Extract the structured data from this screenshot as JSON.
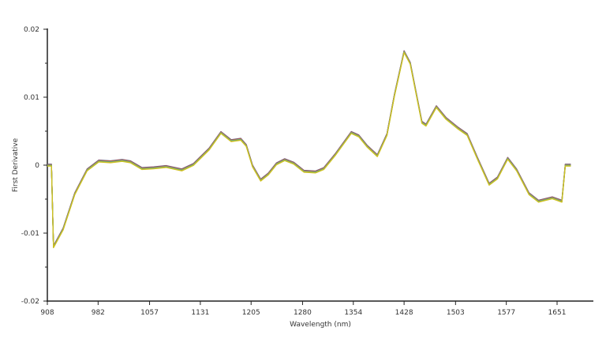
{
  "chart_data": {
    "type": "line",
    "title": "",
    "xlabel": "Wavelength (nm)",
    "ylabel": "First Derivative",
    "xlim": [
      908,
      1745
    ],
    "ylim": [
      -0.02,
      0.02
    ],
    "x_ticks": [
      908,
      982,
      1057,
      1131,
      1205,
      1280,
      1354,
      1428,
      1503,
      1577,
      1651
    ],
    "y_ticks": [
      -0.02,
      -0.01,
      0,
      0.01,
      0.02
    ],
    "y_tick_labels": [
      "-0.02",
      "-0.01",
      "0",
      "0.01",
      "0.02"
    ],
    "grid": false,
    "legend": "none",
    "series_colors": [
      "#7a5c8a",
      "#5a6a7a",
      "#d04040",
      "#e08030",
      "#40a0c0",
      "#50d080",
      "#a0a040",
      "#d0c020"
    ],
    "series": [
      {
        "x": [
          908,
          914,
          917,
          931,
          948,
          966,
          983,
          1000,
          1017,
          1029,
          1046,
          1063,
          1081,
          1104,
          1121,
          1144,
          1161,
          1176,
          1190,
          1198,
          1207,
          1219,
          1230,
          1242,
          1254,
          1267,
          1282,
          1299,
          1311,
          1328,
          1351,
          1362,
          1374,
          1389,
          1403,
          1414,
          1428,
          1437,
          1454,
          1460,
          1475,
          1489,
          1506,
          1520,
          1535,
          1552,
          1564,
          1579,
          1592,
          1610,
          1624,
          1644,
          1658,
          1663,
          1671
        ],
        "y": [
          0,
          0,
          -0.012,
          -0.0094,
          -0.0042,
          -0.0007,
          0.0006,
          0.0005,
          0.0007,
          0.0005,
          -0.0005,
          -0.0004,
          -0.0002,
          -0.0007,
          0.0001,
          0.0024,
          0.0048,
          0.0036,
          0.0038,
          0.0029,
          -0.0001,
          -0.0022,
          -0.0013,
          0.0002,
          0.0008,
          0.0003,
          -0.0009,
          -0.001,
          -0.0005,
          0.0016,
          0.0048,
          0.0043,
          0.0028,
          0.0014,
          0.0045,
          0.0103,
          0.0167,
          0.015,
          0.0063,
          0.0059,
          0.0086,
          0.0069,
          0.0055,
          0.0045,
          0.001,
          -0.0028,
          -0.0019,
          0.001,
          -0.0007,
          -0.0042,
          -0.0053,
          -0.0048,
          -0.0053,
          0,
          0
        ]
      }
    ]
  }
}
